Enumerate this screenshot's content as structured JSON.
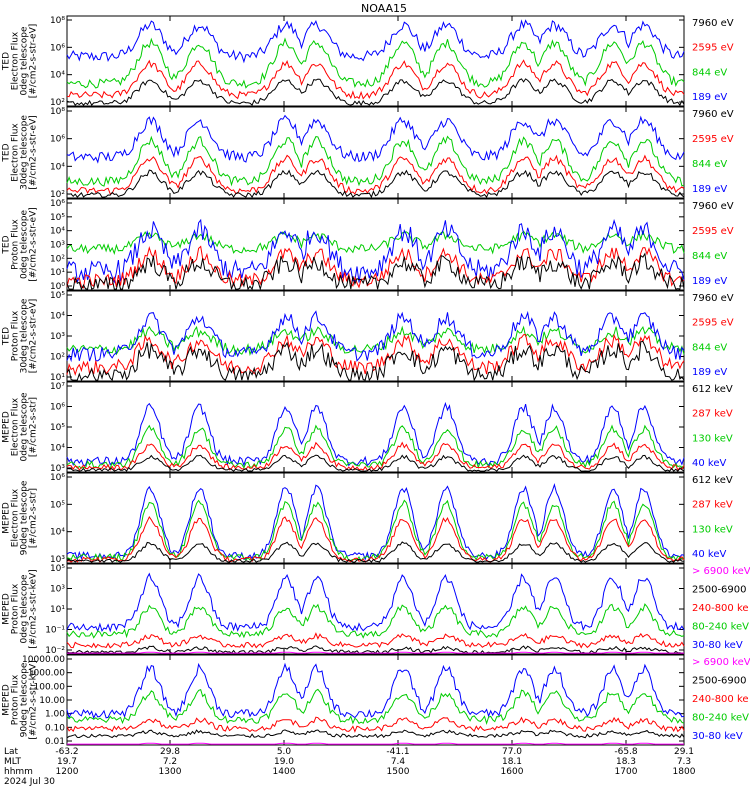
{
  "title": "NOAA15",
  "colors": {
    "blue": "#0000ff",
    "red": "#ff0000",
    "green": "#00cc00",
    "black": "#000000",
    "magenta": "#ff00ff"
  },
  "x_axis": {
    "rows": [
      {
        "label": "Lat",
        "values": [
          "-63.2",
          "29.8",
          "5.0",
          "-41.1",
          "77.0",
          "-65.8",
          "29.1"
        ]
      },
      {
        "label": "MLT",
        "values": [
          "19.7",
          "7.2",
          "19.0",
          "7.4",
          "18.1",
          "18.3",
          "7.3"
        ]
      },
      {
        "label": "hhmm",
        "values": [
          "1200",
          "1300",
          "1400",
          "1500",
          "1600",
          "1700",
          "1800"
        ]
      }
    ],
    "date": "2024 Jul 30"
  },
  "panels": [
    {
      "ylabel": [
        "TED",
        "Electron Flux",
        "0deg telescope",
        "[#/cm2-s-str-eV]"
      ],
      "yticks": [
        "10²",
        "10⁴",
        "10⁶",
        "10⁸"
      ],
      "yscale": "log",
      "legend": [
        {
          "text": "7960 eV",
          "color": "black"
        },
        {
          "text": "2595 eV",
          "color": "red"
        },
        {
          "text": "844 eV",
          "color": "green"
        },
        {
          "text": "189 eV",
          "color": "blue"
        }
      ]
    },
    {
      "ylabel": [
        "TED",
        "Electron Flux",
        "30deg telescope",
        "[#/cm2-s-str-eV]"
      ],
      "yticks": [
        "10²",
        "10⁴",
        "10⁶",
        "10⁸"
      ],
      "yscale": "log",
      "legend": [
        {
          "text": "7960 eV",
          "color": "black"
        },
        {
          "text": "2595 eV",
          "color": "red"
        },
        {
          "text": "844 eV",
          "color": "green"
        },
        {
          "text": "189 eV",
          "color": "blue"
        }
      ]
    },
    {
      "ylabel": [
        "TED",
        "Proton Flux",
        "0deg telescope",
        "[#/cm2-s-str-eV]"
      ],
      "yticks": [
        "10⁰",
        "10¹",
        "10²",
        "10³",
        "10⁴",
        "10⁵",
        "10⁶"
      ],
      "yscale": "log",
      "legend": [
        {
          "text": "7960 eV",
          "color": "black"
        },
        {
          "text": "2595 eV",
          "color": "red"
        },
        {
          "text": "844 eV",
          "color": "green"
        },
        {
          "text": "189 eV",
          "color": "blue"
        }
      ]
    },
    {
      "ylabel": [
        "TED",
        "Proton Flux",
        "30deg telescope",
        "[#/cm2-s-str-eV]"
      ],
      "yticks": [
        "10¹",
        "10²",
        "10³",
        "10⁴",
        "10⁵"
      ],
      "yscale": "log",
      "legend": [
        {
          "text": "7960 eV",
          "color": "black"
        },
        {
          "text": "2595 eV",
          "color": "red"
        },
        {
          "text": "844 eV",
          "color": "green"
        },
        {
          "text": "189 eV",
          "color": "blue"
        }
      ]
    },
    {
      "ylabel": [
        "MEPED",
        "Electron Flux",
        "0deg telescope",
        "[#/cm2-s-str]"
      ],
      "yticks": [
        "10³",
        "10⁴",
        "10⁵",
        "10⁶",
        "10⁷"
      ],
      "yscale": "log",
      "legend": [
        {
          "text": "612 keV",
          "color": "black"
        },
        {
          "text": "287 keV",
          "color": "red"
        },
        {
          "text": "130 keV",
          "color": "green"
        },
        {
          "text": "40 keV",
          "color": "blue"
        }
      ]
    },
    {
      "ylabel": [
        "MEPED",
        "Electron Flux",
        "90deg telescope",
        "[#/cm2-s-str]"
      ],
      "yticks": [
        "10³",
        "10⁴",
        "10⁵",
        "10⁶"
      ],
      "yscale": "log",
      "legend": [
        {
          "text": "612 keV",
          "color": "black"
        },
        {
          "text": "287 keV",
          "color": "red"
        },
        {
          "text": "130 keV",
          "color": "green"
        },
        {
          "text": "40 keV",
          "color": "blue"
        }
      ]
    },
    {
      "ylabel": [
        "MEPED",
        "Proton Flux",
        "0deg telescope",
        "[#/cm2-s-str-keV]"
      ],
      "yticks": [
        "10⁻²",
        "10⁻¹",
        "10¹",
        "10³",
        "10⁵"
      ],
      "yscale": "log",
      "legend": [
        {
          "text": "> 6900 keV",
          "color": "magenta"
        },
        {
          "text": "2500-6900",
          "color": "black"
        },
        {
          "text": "240-800 ke",
          "color": "red"
        },
        {
          "text": "80-240 keV",
          "color": "green"
        },
        {
          "text": "30-80 keV",
          "color": "blue"
        }
      ]
    },
    {
      "ylabel": [
        "MEPED",
        "Proton Flux",
        "90deg telescope",
        "[#/cm2-s-str-keV]"
      ],
      "yticks": [
        "0.01",
        "0.10",
        "1.00",
        "10.00",
        "100.00",
        "1000.00",
        "10000.00"
      ],
      "yscale": "log",
      "legend": [
        {
          "text": "> 6900 keV",
          "color": "magenta"
        },
        {
          "text": "2500-6900",
          "color": "black"
        },
        {
          "text": "240-800 ke",
          "color": "red"
        },
        {
          "text": "80-240 keV",
          "color": "green"
        },
        {
          "text": "30-80 keV",
          "color": "blue"
        }
      ]
    }
  ],
  "chart_data": {
    "type": "line",
    "title": "NOAA15",
    "x_categories": [
      "1200",
      "1300",
      "1400",
      "1500",
      "1600",
      "1700",
      "1800"
    ],
    "panels": [
      {
        "ylabel": "TED Electron Flux 0deg telescope [#/cm2-s-str-eV]",
        "yscale": "log",
        "series": [
          "7960 eV",
          "2595 eV",
          "844 eV",
          "189 eV"
        ]
      },
      {
        "ylabel": "TED Electron Flux 30deg telescope [#/cm2-s-str-eV]",
        "yscale": "log",
        "series": [
          "7960 eV",
          "2595 eV",
          "844 eV",
          "189 eV"
        ]
      },
      {
        "ylabel": "TED Proton Flux 0deg telescope [#/cm2-s-str-eV]",
        "yscale": "log",
        "series": [
          "7960 eV",
          "2595 eV",
          "844 eV",
          "189 eV"
        ]
      },
      {
        "ylabel": "TED Proton Flux 30deg telescope [#/cm2-s-str-eV]",
        "yscale": "log",
        "series": [
          "7960 eV",
          "2595 eV",
          "844 eV",
          "189 eV"
        ]
      },
      {
        "ylabel": "MEPED Electron Flux 0deg telescope [#/cm2-s-str]",
        "yscale": "log",
        "series": [
          "612 keV",
          "287 keV",
          "130 keV",
          "40 keV"
        ]
      },
      {
        "ylabel": "MEPED Electron Flux 90deg telescope [#/cm2-s-str]",
        "yscale": "log",
        "series": [
          "612 keV",
          "287 keV",
          "130 keV",
          "40 keV"
        ]
      },
      {
        "ylabel": "MEPED Proton Flux 0deg telescope [#/cm2-s-str-keV]",
        "yscale": "log",
        "series": [
          "> 6900 keV",
          "2500-6900",
          "240-800 ke",
          "80-240 keV",
          "30-80 keV"
        ]
      },
      {
        "ylabel": "MEPED Proton Flux 90deg telescope [#/cm2-s-str-keV]",
        "yscale": "log",
        "series": [
          "> 6900 keV",
          "2500-6900",
          "240-800 ke",
          "80-240 keV",
          "30-80 keV"
        ]
      }
    ]
  }
}
